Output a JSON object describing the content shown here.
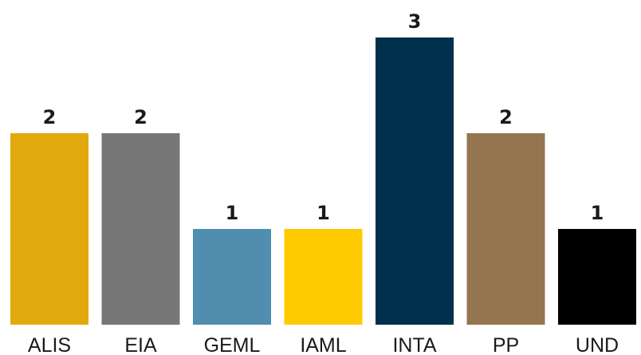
{
  "chart_data": {
    "type": "bar",
    "categories": [
      "ALIS",
      "EIA",
      "GEML",
      "IAML",
      "INTA",
      "PP",
      "UND"
    ],
    "values": [
      2,
      2,
      1,
      1,
      3,
      2,
      1
    ],
    "colors": [
      "#e2a90e",
      "#777777",
      "#4f8eae",
      "#fdca00",
      "#00304b",
      "#957550",
      "#000000"
    ],
    "ylim": [
      0,
      3
    ],
    "grid": false,
    "legend": "none"
  }
}
